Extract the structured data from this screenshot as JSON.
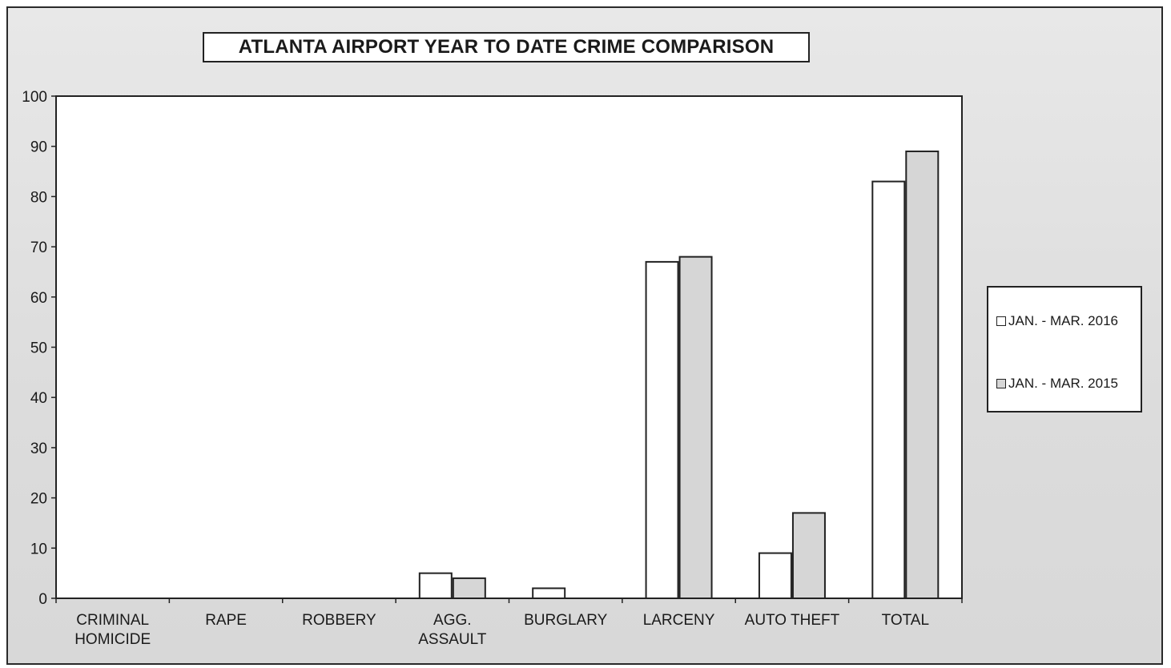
{
  "chart_data": {
    "type": "bar",
    "title": "ATLANTA AIRPORT YEAR TO DATE CRIME COMPARISON",
    "xlabel": "",
    "ylabel": "",
    "ylim": [
      0,
      100
    ],
    "yticks": [
      0,
      10,
      20,
      30,
      40,
      50,
      60,
      70,
      80,
      90,
      100
    ],
    "categories": [
      [
        "CRIMINAL",
        "HOMICIDE"
      ],
      [
        "RAPE"
      ],
      [
        "ROBBERY"
      ],
      [
        "AGG.",
        "ASSAULT"
      ],
      [
        "BURGLARY"
      ],
      [
        "LARCENY"
      ],
      [
        "AUTO THEFT"
      ],
      [
        "TOTAL"
      ]
    ],
    "series": [
      {
        "name": "JAN. - MAR. 2016",
        "values": [
          0,
          0,
          0,
          5,
          2,
          67,
          9,
          83
        ],
        "color": "#ffffff"
      },
      {
        "name": "JAN. - MAR. 2015",
        "values": [
          0,
          0,
          0,
          4,
          0,
          68,
          17,
          89
        ],
        "color": "#d6d6d6"
      }
    ],
    "legend_position": "right",
    "grid": false
  }
}
